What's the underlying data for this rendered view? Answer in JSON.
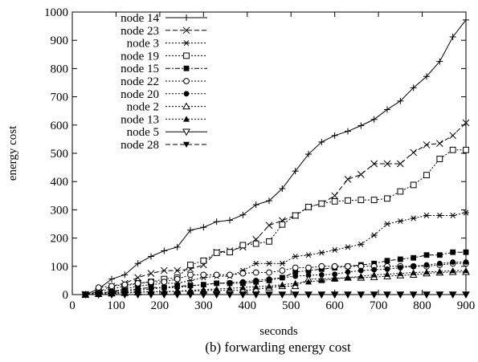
{
  "chart_data": {
    "type": "line",
    "caption": "(b) forwarding energy cost",
    "xlabel": "seconds",
    "ylabel": "energy cost",
    "xlim": [
      0,
      900
    ],
    "ylim": [
      0,
      1000
    ],
    "xticks": [
      0,
      100,
      200,
      300,
      400,
      500,
      600,
      700,
      800,
      900
    ],
    "yticks": [
      0,
      100,
      200,
      300,
      400,
      500,
      600,
      700,
      800,
      900,
      1000
    ],
    "grid": false,
    "legend_position": "top-left",
    "series": [
      {
        "name": "node 14",
        "marker": "plus",
        "dash": "solid",
        "x": [
          30,
          60,
          90,
          120,
          150,
          180,
          210,
          240,
          270,
          300,
          330,
          360,
          390,
          420,
          450,
          480,
          510,
          540,
          570,
          600,
          630,
          660,
          690,
          720,
          750,
          780,
          810,
          840,
          870,
          900
        ],
        "y": [
          0,
          20,
          55,
          70,
          110,
          135,
          155,
          168,
          228,
          238,
          258,
          263,
          282,
          318,
          332,
          375,
          437,
          497,
          540,
          563,
          578,
          598,
          620,
          655,
          685,
          732,
          772,
          825,
          912,
          972
        ]
      },
      {
        "name": "node 23",
        "marker": "x",
        "dash": "dashed",
        "x": [
          30,
          60,
          90,
          120,
          150,
          180,
          210,
          240,
          270,
          300,
          330,
          360,
          390,
          420,
          450,
          480,
          510,
          540,
          570,
          600,
          630,
          660,
          690,
          720,
          750,
          780,
          810,
          840,
          870,
          900
        ],
        "y": [
          0,
          10,
          30,
          40,
          60,
          75,
          85,
          85,
          90,
          105,
          150,
          155,
          168,
          195,
          245,
          262,
          280,
          310,
          322,
          350,
          408,
          425,
          463,
          463,
          463,
          503,
          530,
          535,
          563,
          608
        ]
      },
      {
        "name": "node 3",
        "marker": "asterisk",
        "dash": "dotted",
        "x": [
          30,
          60,
          90,
          120,
          150,
          180,
          210,
          240,
          270,
          300,
          330,
          360,
          390,
          420,
          450,
          480,
          510,
          540,
          570,
          600,
          630,
          660,
          690,
          720,
          750,
          780,
          810,
          840,
          870,
          900
        ],
        "y": [
          0,
          5,
          10,
          20,
          30,
          35,
          40,
          40,
          50,
          60,
          65,
          65,
          85,
          110,
          110,
          110,
          135,
          140,
          148,
          158,
          168,
          178,
          210,
          250,
          260,
          270,
          280,
          280,
          280,
          290
        ]
      },
      {
        "name": "node 19",
        "marker": "square-open",
        "dash": "dotted",
        "x": [
          30,
          60,
          90,
          120,
          150,
          180,
          210,
          240,
          270,
          300,
          330,
          360,
          390,
          420,
          450,
          480,
          510,
          540,
          570,
          600,
          630,
          660,
          690,
          720,
          750,
          780,
          810,
          840,
          870,
          900
        ],
        "y": [
          0,
          10,
          20,
          30,
          40,
          45,
          55,
          60,
          105,
          120,
          148,
          150,
          175,
          180,
          188,
          248,
          280,
          310,
          322,
          330,
          333,
          335,
          335,
          340,
          365,
          388,
          423,
          480,
          512,
          512
        ]
      },
      {
        "name": "node 15",
        "marker": "square-filled",
        "dash": "dashdot",
        "x": [
          30,
          60,
          90,
          120,
          150,
          180,
          210,
          240,
          270,
          300,
          330,
          360,
          390,
          420,
          450,
          480,
          510,
          540,
          570,
          600,
          630,
          660,
          690,
          720,
          750,
          780,
          810,
          840,
          870,
          900
        ],
        "y": [
          0,
          5,
          10,
          15,
          20,
          25,
          25,
          30,
          32,
          35,
          40,
          40,
          40,
          45,
          50,
          60,
          80,
          85,
          90,
          95,
          100,
          105,
          110,
          120,
          125,
          130,
          140,
          140,
          150,
          150
        ]
      },
      {
        "name": "node 22",
        "marker": "circle-open",
        "dash": "dotted",
        "x": [
          60,
          90,
          120,
          150,
          180,
          210,
          240,
          270,
          300,
          330,
          360,
          390,
          420,
          450,
          480,
          510,
          540,
          570,
          600,
          630,
          660,
          690,
          720,
          750,
          780,
          810,
          840,
          870,
          900
        ],
        "y": [
          25,
          30,
          35,
          40,
          45,
          45,
          55,
          70,
          70,
          70,
          70,
          75,
          78,
          78,
          85,
          95,
          95,
          100,
          100,
          100,
          100,
          100,
          100,
          100,
          100,
          100,
          105,
          110,
          110
        ]
      },
      {
        "name": "node 20",
        "marker": "circle-filled",
        "dash": "dotted",
        "x": [
          30,
          60,
          90,
          120,
          150,
          180,
          210,
          240,
          270,
          300,
          330,
          360,
          390,
          420,
          450,
          480,
          510,
          540,
          570,
          600,
          630,
          660,
          690,
          720,
          750,
          780,
          810,
          840,
          870,
          900
        ],
        "y": [
          0,
          2,
          5,
          10,
          15,
          20,
          25,
          25,
          30,
          35,
          40,
          42,
          45,
          50,
          55,
          60,
          65,
          68,
          70,
          72,
          80,
          85,
          88,
          90,
          95,
          100,
          105,
          110,
          115,
          115
        ]
      },
      {
        "name": "node 2",
        "marker": "triangle-open",
        "dash": "dotted",
        "x": [
          30,
          60,
          90,
          120,
          150,
          180,
          210,
          240,
          270,
          300,
          330,
          360,
          390,
          420,
          450,
          480,
          510,
          540,
          570,
          600,
          630,
          660,
          690,
          720,
          750,
          780,
          810,
          840,
          870,
          900
        ],
        "y": [
          0,
          2,
          4,
          6,
          8,
          10,
          10,
          12,
          12,
          14,
          15,
          15,
          15,
          18,
          25,
          30,
          30,
          55,
          55,
          58,
          60,
          60,
          62,
          65,
          68,
          70,
          75,
          78,
          80,
          80
        ]
      },
      {
        "name": "node 13",
        "marker": "triangle-filled",
        "dash": "dotted",
        "x": [
          30,
          60,
          90,
          120,
          150,
          180,
          210,
          240,
          270,
          300,
          330,
          360,
          390,
          420,
          450,
          480,
          510,
          540,
          570,
          600,
          630,
          660,
          690,
          720,
          750,
          780,
          810,
          840,
          870,
          900
        ],
        "y": [
          0,
          2,
          4,
          6,
          8,
          10,
          10,
          12,
          15,
          18,
          20,
          22,
          25,
          28,
          30,
          35,
          40,
          45,
          50,
          55,
          60,
          65,
          70,
          72,
          75,
          78,
          80,
          82,
          85,
          85
        ]
      },
      {
        "name": "node 5",
        "marker": "triangle-down-open",
        "dash": "solid",
        "x": [
          30,
          60,
          90,
          120,
          150,
          180,
          210,
          240,
          270,
          300,
          330,
          360,
          390,
          420,
          450,
          480,
          510,
          540,
          570,
          600,
          630,
          660,
          690,
          720,
          750,
          780,
          810,
          840,
          870,
          900
        ],
        "y": [
          0,
          0,
          0,
          0,
          0,
          0,
          0,
          0,
          0,
          0,
          0,
          0,
          0,
          0,
          0,
          0,
          0,
          0,
          0,
          0,
          0,
          0,
          0,
          0,
          0,
          0,
          0,
          0,
          0,
          0
        ]
      },
      {
        "name": "node 28",
        "marker": "triangle-down-filled",
        "dash": "dashed",
        "x": [
          30,
          60,
          90,
          120,
          150,
          180,
          210,
          240,
          270,
          300,
          330,
          360,
          390,
          420,
          450,
          480,
          510,
          540,
          570,
          600,
          630,
          660,
          690,
          720,
          750,
          780,
          810,
          840,
          870,
          900
        ],
        "y": [
          0,
          0,
          0,
          0,
          0,
          0,
          0,
          0,
          0,
          0,
          0,
          0,
          0,
          0,
          0,
          0,
          0,
          0,
          0,
          0,
          0,
          0,
          0,
          0,
          0,
          0,
          0,
          0,
          0,
          0
        ]
      }
    ]
  }
}
